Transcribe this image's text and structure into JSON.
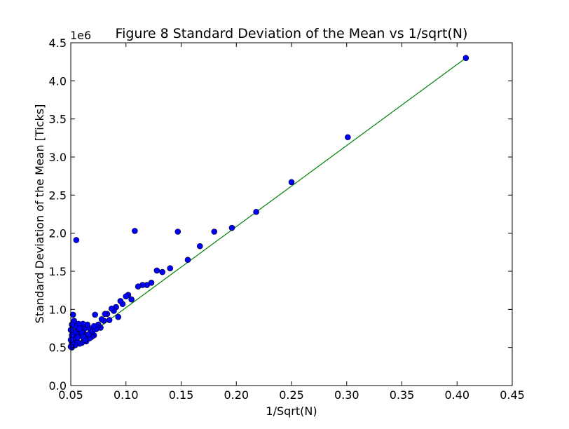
{
  "chart_data": {
    "type": "scatter",
    "title": "Figure 8 Standard Deviation of the Mean vs 1/sqrt(N)",
    "xlabel": "1/Sqrt(N)",
    "ylabel": "Standard Deviation of the Mean [Ticks]",
    "y_offset_label": "1e6",
    "xlim": [
      0.05,
      0.45
    ],
    "ylim": [
      0.0,
      4.5
    ],
    "x_ticks": [
      0.05,
      0.1,
      0.15,
      0.2,
      0.25,
      0.3,
      0.35,
      0.4,
      0.45
    ],
    "x_tick_labels": [
      "0.05",
      "0.10",
      "0.15",
      "0.20",
      "0.25",
      "0.30",
      "0.35",
      "0.40",
      "0.45"
    ],
    "y_ticks": [
      0.0,
      0.5,
      1.0,
      1.5,
      2.0,
      2.5,
      3.0,
      3.5,
      4.0,
      4.5
    ],
    "y_tick_labels": [
      "0.0",
      "0.5",
      "1.0",
      "1.5",
      "2.0",
      "2.5",
      "3.0",
      "3.5",
      "4.0",
      "4.5"
    ],
    "grid": false,
    "colors": {
      "points": "#0000ff",
      "point_edge": "#000000",
      "fit_line": "#008000"
    },
    "series": [
      {
        "kind": "points",
        "x": [
          0.408,
          0.301,
          0.25,
          0.218,
          0.196,
          0.18,
          0.167,
          0.156,
          0.147,
          0.14,
          0.133,
          0.128,
          0.123,
          0.119,
          0.115,
          0.111,
          0.108,
          0.105,
          0.102,
          0.1,
          0.097,
          0.095,
          0.093,
          0.091,
          0.089,
          0.087,
          0.085,
          0.083,
          0.081,
          0.08,
          0.078,
          0.077,
          0.075,
          0.074,
          0.073,
          0.072,
          0.071,
          0.07,
          0.069,
          0.068,
          0.067,
          0.066,
          0.065,
          0.064,
          0.063,
          0.062,
          0.062,
          0.061,
          0.06,
          0.06,
          0.059,
          0.058,
          0.058,
          0.057,
          0.057,
          0.056,
          0.056,
          0.055,
          0.055,
          0.054,
          0.054,
          0.053,
          0.053,
          0.053,
          0.052,
          0.052,
          0.051,
          0.051,
          0.051,
          0.051,
          0.05,
          0.05,
          0.05,
          0.063,
          0.06,
          0.058,
          0.066,
          0.071,
          0.061,
          0.056
        ],
        "y": [
          4.3,
          3.26,
          2.67,
          2.28,
          2.07,
          2.02,
          1.83,
          1.65,
          2.02,
          1.54,
          1.49,
          1.51,
          1.35,
          1.32,
          1.32,
          1.3,
          2.03,
          1.13,
          1.19,
          1.17,
          1.07,
          1.11,
          0.9,
          1.03,
          0.98,
          1.01,
          0.86,
          0.94,
          0.94,
          0.85,
          0.87,
          0.76,
          0.8,
          0.77,
          0.74,
          0.93,
          0.66,
          0.72,
          0.64,
          0.7,
          0.62,
          0.76,
          0.8,
          0.58,
          0.67,
          0.74,
          0.6,
          0.81,
          0.7,
          0.56,
          0.76,
          0.65,
          0.55,
          0.66,
          0.81,
          0.73,
          0.57,
          0.68,
          1.91,
          0.78,
          0.53,
          0.85,
          0.62,
          0.7,
          0.93,
          0.61,
          0.8,
          0.56,
          0.66,
          0.5,
          0.73,
          0.6,
          0.51,
          0.6,
          0.7,
          0.75,
          0.67,
          0.78,
          0.64,
          0.63
        ]
      },
      {
        "kind": "fit-line",
        "x": [
          0.05,
          0.408
        ],
        "y": [
          0.49,
          4.3
        ]
      }
    ]
  }
}
